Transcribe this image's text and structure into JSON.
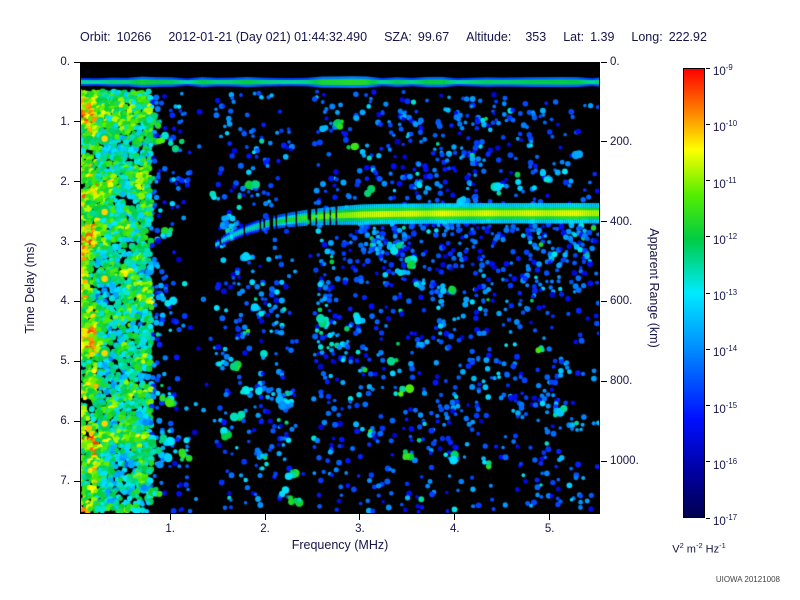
{
  "header": {
    "orbit_label": "Orbit:",
    "orbit_value": "10266",
    "datetime": "2012-01-21 (Day 021) 01:44:32.490",
    "sza_label": "SZA:",
    "sza_value": "99.67",
    "alt_label": "Altitude:",
    "alt_value": "353",
    "lat_label": "Lat:",
    "lat_value": "1.39",
    "long_label": "Long:",
    "long_value": "222.92"
  },
  "credit": "UIOWA 20121008",
  "chart_data": {
    "type": "heatmap",
    "title": "",
    "xlabel": "Frequency (MHz)",
    "ylabel_left": "Time Delay (ms)",
    "ylabel_right": "Apparent Range (km)",
    "xlim": [
      0.05,
      5.53
    ],
    "tlim": [
      0,
      7.55
    ],
    "km_per_ms": 150,
    "x_ticks": [
      {
        "v": 1,
        "label": "1."
      },
      {
        "v": 2,
        "label": "2."
      },
      {
        "v": 3,
        "label": "3."
      },
      {
        "v": 4,
        "label": "4."
      },
      {
        "v": 5,
        "label": "5."
      }
    ],
    "y_ticks_left": [
      {
        "v": 0,
        "label": "0."
      },
      {
        "v": 1,
        "label": "1."
      },
      {
        "v": 2,
        "label": "2."
      },
      {
        "v": 3,
        "label": "3."
      },
      {
        "v": 4,
        "label": "4."
      },
      {
        "v": 5,
        "label": "5."
      },
      {
        "v": 6,
        "label": "6."
      },
      {
        "v": 7,
        "label": "7."
      }
    ],
    "y_ticks_right": [
      {
        "v": 0,
        "label": "0."
      },
      {
        "v": 200,
        "label": "200."
      },
      {
        "v": 400,
        "label": "400."
      },
      {
        "v": 600,
        "label": "600."
      },
      {
        "v": 800,
        "label": "800."
      },
      {
        "v": 1000,
        "label": "1000."
      }
    ],
    "colorbar": {
      "base": "10",
      "tick_exponents": [
        "-9",
        "-10",
        "-11",
        "-12",
        "-13",
        "-14",
        "-15",
        "-16",
        "-17"
      ],
      "units": "V^2 m^-2 Hz^-1"
    },
    "colormap_stops": [
      {
        "p": 0.0,
        "c": "#000050"
      },
      {
        "p": 0.1,
        "c": "#0000a0"
      },
      {
        "p": 0.22,
        "c": "#0010ff"
      },
      {
        "p": 0.38,
        "c": "#0090ff"
      },
      {
        "p": 0.5,
        "c": "#00eaff"
      },
      {
        "p": 0.62,
        "c": "#00cc44"
      },
      {
        "p": 0.72,
        "c": "#55ee00"
      },
      {
        "p": 0.82,
        "c": "#ffff00"
      },
      {
        "p": 0.9,
        "c": "#ff8800"
      },
      {
        "p": 1.0,
        "c": "#ff0000"
      }
    ],
    "speckle_density": [
      [
        0.05,
        0.95
      ],
      [
        0.45,
        0.9
      ],
      [
        0.8,
        0.72
      ],
      [
        1.0,
        0.4
      ],
      [
        1.3,
        0.3
      ],
      [
        1.7,
        0.32
      ],
      [
        2.1,
        0.4
      ],
      [
        2.6,
        0.38
      ],
      [
        3.0,
        0.36
      ],
      [
        3.6,
        0.38
      ],
      [
        4.2,
        0.34
      ],
      [
        5.0,
        0.3
      ],
      [
        5.53,
        0.26
      ]
    ],
    "features": {
      "surface_echo": {
        "delay_ms": 0.32,
        "f_min": 0.05,
        "f_max": 5.53,
        "intensity": 0.62
      },
      "ionospheric_trace": {
        "delay_ms": 2.52,
        "cusp_freq": 1.45,
        "cusp_scale": 0.5,
        "cusp_rise": 0.55,
        "f_min": 1.45,
        "f_max": 5.53,
        "ramp_freq": 3.0,
        "intensity_low": 0.5,
        "intensity_high": 0.8
      },
      "diffuse_echo": {
        "f_min": 2.9,
        "extent_ms": 1.8,
        "boost": 0.22
      },
      "upper_right_cloud": {
        "f_min": 3.1,
        "f_max": 4.7,
        "t_min": 0.7,
        "t_max": 2.2,
        "boost": 0.12
      },
      "low_freq_noise": {
        "f_max": 0.8
      },
      "dark_bands": [
        {
          "f_min": 1.22,
          "f_max": 1.47
        },
        {
          "f_min": 2.28,
          "f_max": 2.52
        }
      ],
      "noise_rows": [
        {
          "delay_ms": 1.27,
          "f_min": 0.05,
          "f_max": 0.97,
          "intensity": 0.58
        },
        {
          "delay_ms": 2.5,
          "f_min": 0.05,
          "f_max": 0.72,
          "intensity": 0.6
        }
      ],
      "cyclotron_spots": {
        "freq": 0.3,
        "delays": [
          1.27,
          2.5,
          3.62,
          4.87,
          6.05
        ],
        "intensity": 0.85
      }
    }
  }
}
